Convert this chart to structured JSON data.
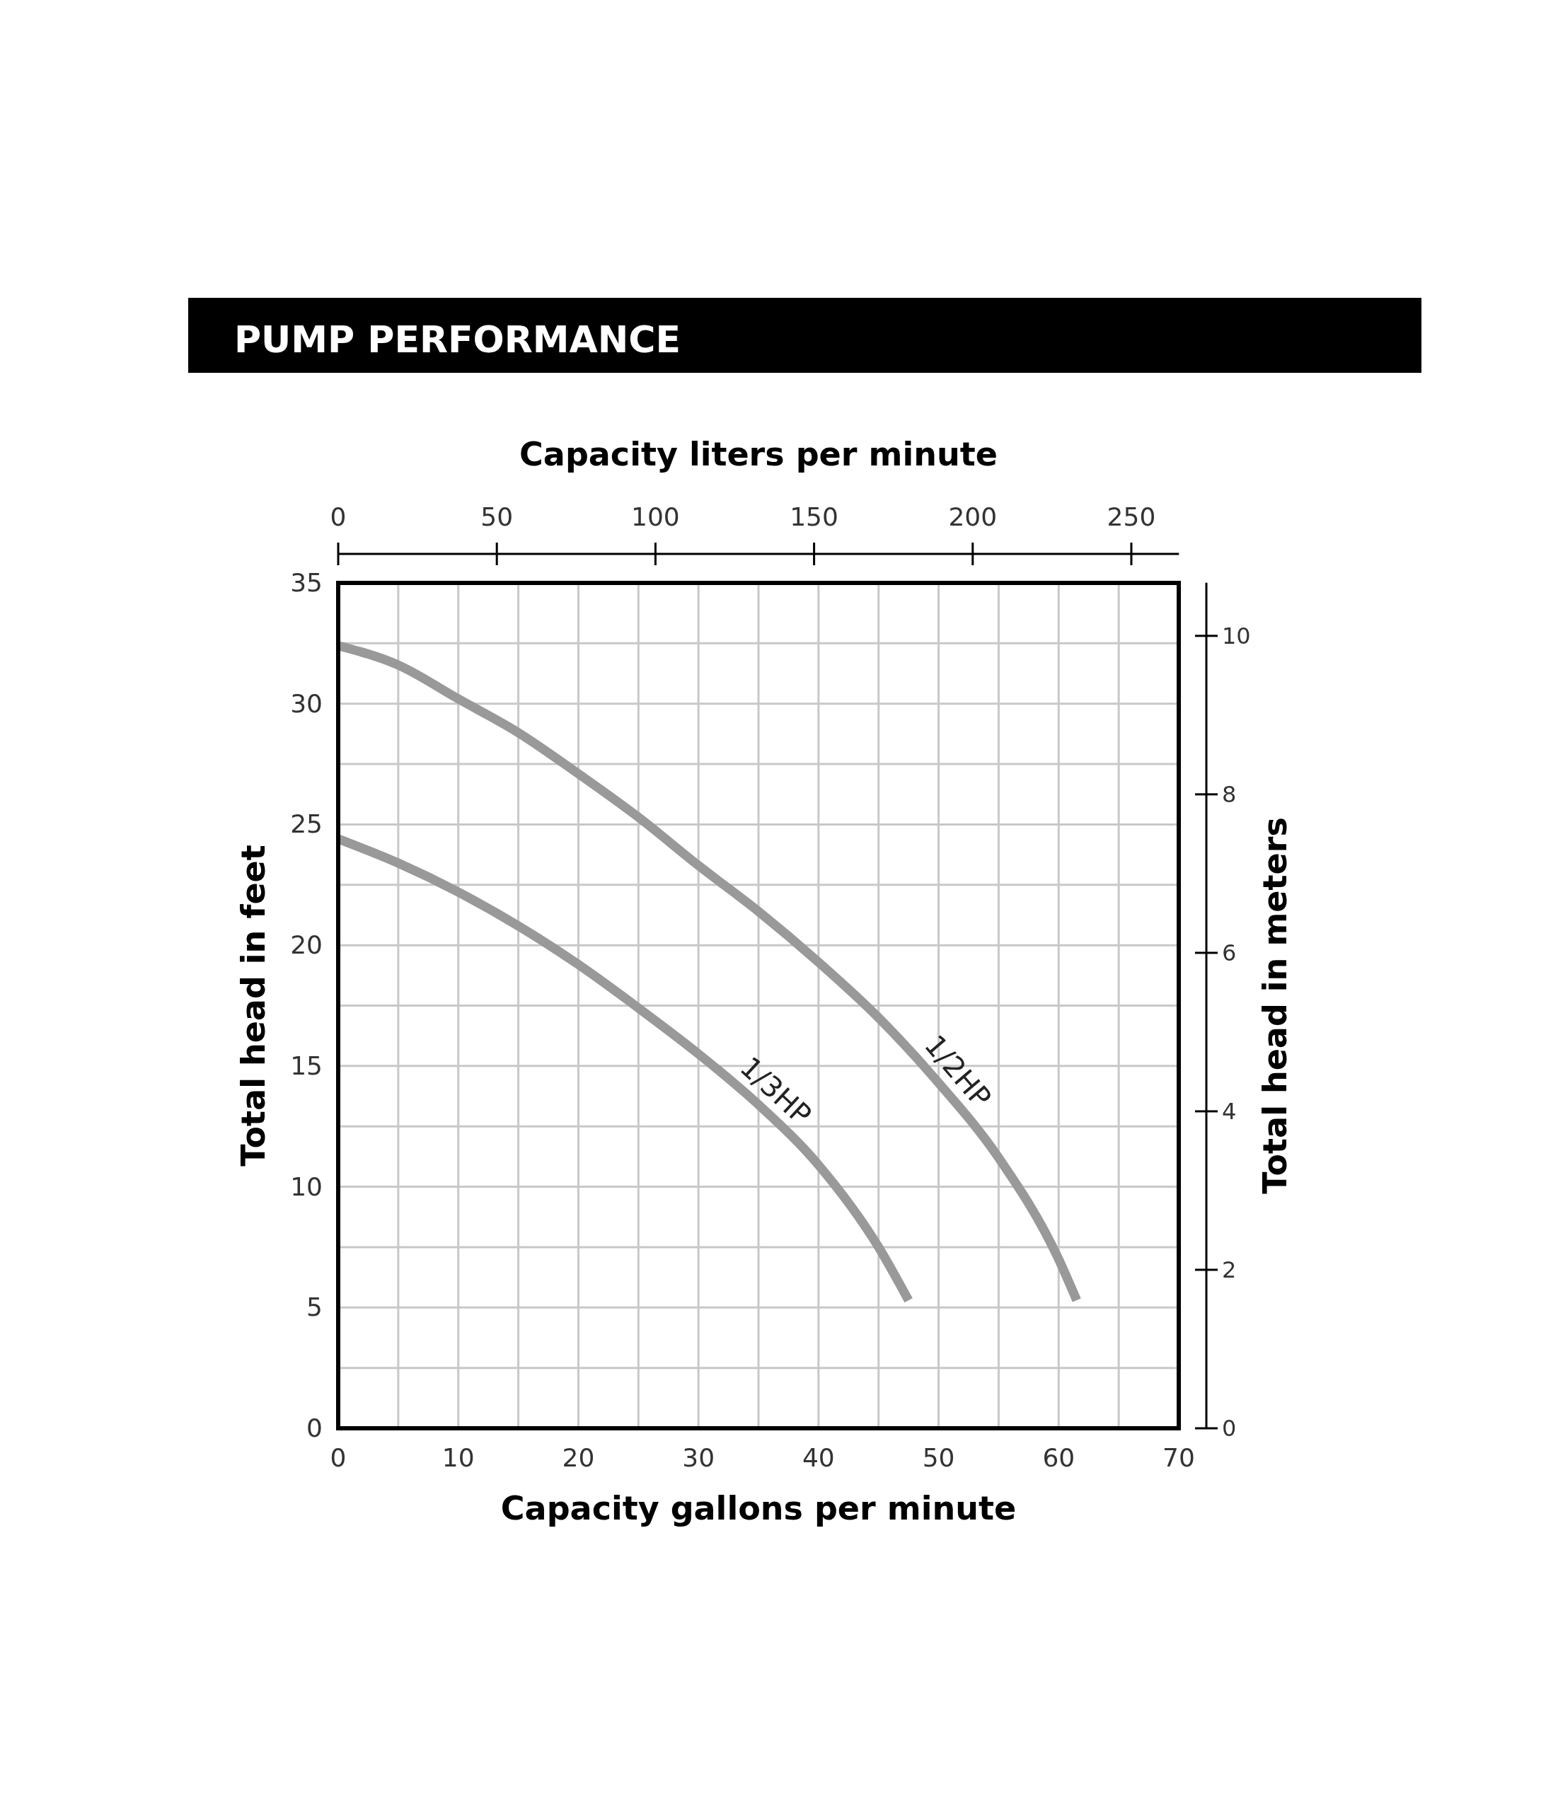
{
  "chart_data": {
    "type": "line",
    "title": "PUMP PERFORMANCE",
    "xlabel": "Capacity gallons per minute",
    "ylabel": "Total head in feet",
    "x2label": "Capacity liters per minute",
    "y2label": "Total head in meters",
    "xlim": [
      0,
      70
    ],
    "xticks": [
      0,
      {
        "value": 5,
        "label": null
      },
      10,
      {
        "value": 15,
        "label": null
      },
      20,
      {
        "value": 25,
        "label": null
      },
      30,
      {
        "value": 35,
        "label": null
      },
      40,
      {
        "value": 45,
        "label": null
      },
      50,
      {
        "value": 55,
        "label": null
      },
      60,
      {
        "value": 65,
        "label": null
      },
      70
    ],
    "ylim": [
      0,
      35
    ],
    "yticks": [
      0,
      {
        "value": 2.5,
        "label": null
      },
      5,
      {
        "value": 7.5,
        "label": null
      },
      10,
      {
        "value": 12.5,
        "label": null
      },
      15,
      {
        "value": 17.5,
        "label": null
      },
      20,
      {
        "value": 22.5,
        "label": null
      },
      25,
      {
        "value": 27.5,
        "label": null
      },
      30,
      {
        "value": 32.5,
        "label": null
      },
      35
    ],
    "x2lim": [
      0,
      265
    ],
    "x2ticks": [
      0,
      50,
      100,
      150,
      200,
      250
    ],
    "y2lim": [
      0,
      10.67
    ],
    "y2ticks": [
      0,
      2,
      4,
      6,
      8,
      10
    ],
    "grid": true,
    "line_style": "solid",
    "marker": "none",
    "series": [
      {
        "name": "1/2HP",
        "color": "#999999",
        "x": [
          0,
          5,
          10,
          15,
          20,
          25,
          30,
          35,
          40,
          45,
          50,
          55,
          60,
          61.5
        ],
        "values": [
          32.4,
          31.6,
          30.2,
          28.8,
          27.1,
          25.3,
          23.3,
          21.4,
          19.3,
          17,
          14.3,
          11.2,
          7,
          5.3
        ]
      },
      {
        "name": "1/3HP",
        "color": "#999999",
        "x": [
          0,
          5,
          10,
          15,
          20,
          25,
          30,
          35,
          40,
          45,
          47.5
        ],
        "values": [
          24.4,
          23.4,
          22.2,
          20.8,
          19.2,
          17.4,
          15.5,
          13.4,
          10.9,
          7.5,
          5.3
        ]
      }
    ]
  }
}
